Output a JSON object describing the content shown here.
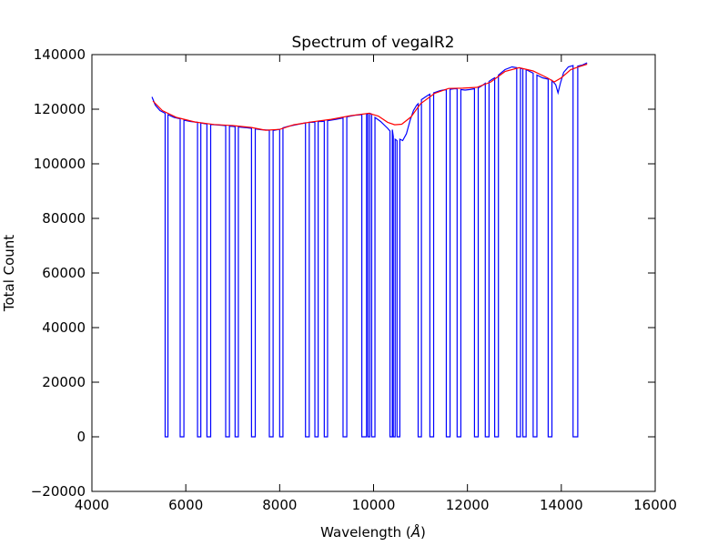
{
  "chart_data": {
    "type": "line",
    "title": "Spectrum of vegaIR2",
    "xlabel_main": "Wavelength (",
    "xlabel_unit": "Å",
    "xlabel_close": ")",
    "ylabel": "Total Count",
    "xlim": [
      4000,
      16000
    ],
    "ylim": [
      -20000,
      140000
    ],
    "x_ticks": [
      4000,
      6000,
      8000,
      10000,
      12000,
      14000,
      16000
    ],
    "y_ticks": [
      -20000,
      0,
      20000,
      40000,
      60000,
      80000,
      100000,
      120000,
      140000
    ],
    "x_tick_labels": [
      "4000",
      "6000",
      "8000",
      "10000",
      "12000",
      "14000",
      "16000"
    ],
    "y_tick_labels": [
      "−20000",
      "0",
      "20000",
      "40000",
      "60000",
      "80000",
      "100000",
      "120000",
      "140000"
    ],
    "grid": false,
    "colors": {
      "spectrum": "#0000ff",
      "fit": "#ff0000"
    },
    "series": [
      {
        "id": "spectrum",
        "points": [
          [
            5280,
            124500
          ],
          [
            5350,
            121500
          ],
          [
            5450,
            119500
          ],
          [
            5560,
            118500
          ],
          [
            5560,
            0
          ],
          [
            5620,
            0
          ],
          [
            5620,
            118000
          ],
          [
            5750,
            117000
          ],
          [
            5880,
            116500
          ],
          [
            5880,
            0
          ],
          [
            5960,
            0
          ],
          [
            5960,
            116000
          ],
          [
            6100,
            115500
          ],
          [
            6250,
            115200
          ],
          [
            6250,
            0
          ],
          [
            6320,
            0
          ],
          [
            6320,
            115000
          ],
          [
            6400,
            114700
          ],
          [
            6450,
            114600
          ],
          [
            6450,
            0
          ],
          [
            6530,
            0
          ],
          [
            6530,
            114400
          ],
          [
            6700,
            114200
          ],
          [
            6850,
            114000
          ],
          [
            6850,
            0
          ],
          [
            6930,
            0
          ],
          [
            6930,
            113800
          ],
          [
            7000,
            113700
          ],
          [
            7050,
            113600
          ],
          [
            7050,
            0
          ],
          [
            7120,
            0
          ],
          [
            7120,
            113500
          ],
          [
            7300,
            113200
          ],
          [
            7400,
            113000
          ],
          [
            7400,
            0
          ],
          [
            7480,
            0
          ],
          [
            7480,
            112800
          ],
          [
            7600,
            112500
          ],
          [
            7780,
            112300
          ],
          [
            7780,
            0
          ],
          [
            7860,
            0
          ],
          [
            7860,
            112200
          ],
          [
            7950,
            112500
          ],
          [
            8000,
            112600
          ],
          [
            8000,
            0
          ],
          [
            8070,
            0
          ],
          [
            8070,
            113200
          ],
          [
            8200,
            113800
          ],
          [
            8400,
            114500
          ],
          [
            8550,
            115000
          ],
          [
            8550,
            0
          ],
          [
            8630,
            0
          ],
          [
            8630,
            115200
          ],
          [
            8700,
            115200
          ],
          [
            8750,
            115300
          ],
          [
            8750,
            0
          ],
          [
            8820,
            0
          ],
          [
            8820,
            115500
          ],
          [
            8900,
            115500
          ],
          [
            8950,
            115600
          ],
          [
            8950,
            0
          ],
          [
            9020,
            0
          ],
          [
            9020,
            115800
          ],
          [
            9200,
            116300
          ],
          [
            9350,
            116800
          ],
          [
            9350,
            0
          ],
          [
            9430,
            0
          ],
          [
            9430,
            117200
          ],
          [
            9600,
            117800
          ],
          [
            9750,
            118000
          ],
          [
            9750,
            0
          ],
          [
            9850,
            0
          ],
          [
            9850,
            118200
          ],
          [
            9880,
            118300
          ],
          [
            9880,
            0
          ],
          [
            9920,
            0
          ],
          [
            9920,
            118500
          ],
          [
            9960,
            118200
          ],
          [
            9960,
            0
          ],
          [
            10030,
            0
          ],
          [
            10030,
            117000
          ],
          [
            10150,
            115500
          ],
          [
            10300,
            113000
          ],
          [
            10350,
            112000
          ],
          [
            10350,
            0
          ],
          [
            10400,
            0
          ],
          [
            10400,
            112500
          ],
          [
            10420,
            110000
          ],
          [
            10420,
            0
          ],
          [
            10460,
            0
          ],
          [
            10460,
            109000
          ],
          [
            10500,
            108500
          ],
          [
            10500,
            0
          ],
          [
            10560,
            0
          ],
          [
            10560,
            109000
          ],
          [
            10620,
            108500
          ],
          [
            10700,
            111000
          ],
          [
            10780,
            116000
          ],
          [
            10850,
            119500
          ],
          [
            10920,
            121500
          ],
          [
            10950,
            122000
          ],
          [
            10950,
            0
          ],
          [
            11020,
            0
          ],
          [
            11020,
            123500
          ],
          [
            11150,
            125000
          ],
          [
            11200,
            125500
          ],
          [
            11200,
            0
          ],
          [
            11280,
            0
          ],
          [
            11280,
            126000
          ],
          [
            11420,
            126800
          ],
          [
            11550,
            127200
          ],
          [
            11550,
            0
          ],
          [
            11630,
            0
          ],
          [
            11630,
            127300
          ],
          [
            11720,
            127500
          ],
          [
            11780,
            127500
          ],
          [
            11780,
            0
          ],
          [
            11860,
            0
          ],
          [
            11860,
            127200
          ],
          [
            11950,
            127000
          ],
          [
            12050,
            127200
          ],
          [
            12150,
            127500
          ],
          [
            12150,
            0
          ],
          [
            12230,
            0
          ],
          [
            12230,
            127800
          ],
          [
            12300,
            128500
          ],
          [
            12380,
            129500
          ],
          [
            12380,
            0
          ],
          [
            12460,
            0
          ],
          [
            12460,
            130200
          ],
          [
            12530,
            131000
          ],
          [
            12580,
            131500
          ],
          [
            12580,
            0
          ],
          [
            12660,
            0
          ],
          [
            12660,
            132500
          ],
          [
            12800,
            134500
          ],
          [
            12950,
            135500
          ],
          [
            13050,
            135200
          ],
          [
            13050,
            0
          ],
          [
            13130,
            0
          ],
          [
            13130,
            135000
          ],
          [
            13180,
            134800
          ],
          [
            13180,
            0
          ],
          [
            13250,
            0
          ],
          [
            13250,
            134500
          ],
          [
            13330,
            133800
          ],
          [
            13400,
            133200
          ],
          [
            13400,
            0
          ],
          [
            13480,
            0
          ],
          [
            13480,
            132500
          ],
          [
            13600,
            131500
          ],
          [
            13720,
            131000
          ],
          [
            13720,
            0
          ],
          [
            13800,
            0
          ],
          [
            13800,
            130500
          ],
          [
            13880,
            129000
          ],
          [
            13930,
            126000
          ],
          [
            13980,
            129500
          ],
          [
            14050,
            133500
          ],
          [
            14150,
            135500
          ],
          [
            14250,
            136000
          ],
          [
            14250,
            0
          ],
          [
            14350,
            0
          ],
          [
            14350,
            135800
          ],
          [
            14450,
            136200
          ],
          [
            14550,
            137000
          ]
        ]
      },
      {
        "id": "fit",
        "points": [
          [
            5300,
            123000
          ],
          [
            5500,
            119500
          ],
          [
            5800,
            117000
          ],
          [
            6200,
            115300
          ],
          [
            6600,
            114400
          ],
          [
            7000,
            114000
          ],
          [
            7400,
            113300
          ],
          [
            7700,
            112300
          ],
          [
            8000,
            112600
          ],
          [
            8300,
            114300
          ],
          [
            8700,
            115400
          ],
          [
            9100,
            116300
          ],
          [
            9500,
            117600
          ],
          [
            9900,
            118500
          ],
          [
            10100,
            117500
          ],
          [
            10300,
            115200
          ],
          [
            10450,
            114300
          ],
          [
            10600,
            114500
          ],
          [
            10800,
            117200
          ],
          [
            11000,
            122000
          ],
          [
            11300,
            125800
          ],
          [
            11600,
            127600
          ],
          [
            11900,
            127700
          ],
          [
            12200,
            128000
          ],
          [
            12500,
            130000
          ],
          [
            12800,
            133800
          ],
          [
            13100,
            135200
          ],
          [
            13400,
            134000
          ],
          [
            13700,
            131500
          ],
          [
            13850,
            130000
          ],
          [
            14000,
            131500
          ],
          [
            14200,
            134500
          ],
          [
            14400,
            135700
          ],
          [
            14550,
            136500
          ]
        ]
      }
    ]
  }
}
